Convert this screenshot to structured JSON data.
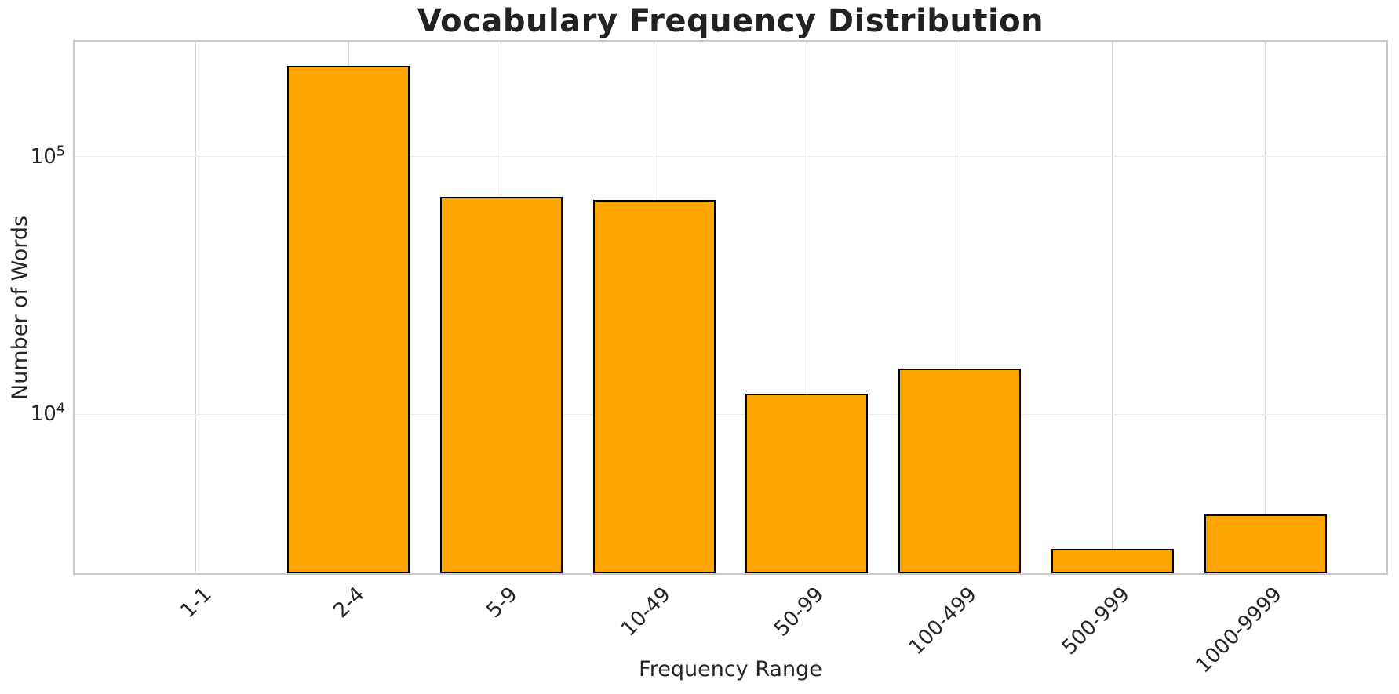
{
  "chart_data": {
    "type": "bar",
    "title": "Vocabulary Frequency Distribution",
    "xlabel": "Frequency Range",
    "ylabel": "Number of Words",
    "categories": [
      "1-1",
      "2-4",
      "5-9",
      "10-49",
      "50-99",
      "100-499",
      "500-999",
      "1000-9999"
    ],
    "values": [
      0,
      225000,
      70000,
      68000,
      12000,
      15000,
      3000,
      4100
    ],
    "yscale": "log",
    "ylim": [
      2418,
      279300
    ],
    "xlim": [
      -0.79,
      7.79
    ],
    "bar_width": 0.8,
    "yticks": [
      {
        "base": "10",
        "exp": "4",
        "value": 10000
      },
      {
        "base": "10",
        "exp": "5",
        "value": 100000
      }
    ],
    "grid": "both",
    "legend": "none",
    "colors": {
      "bar_fill": "#FFA500",
      "bar_edge": "#000000",
      "grid_vertical": "#d7d7d7",
      "grid_horizontal": "#ededed",
      "spine": "#c9c9c9",
      "text": "#262626",
      "title": "#222222",
      "background": "#ffffff"
    }
  }
}
